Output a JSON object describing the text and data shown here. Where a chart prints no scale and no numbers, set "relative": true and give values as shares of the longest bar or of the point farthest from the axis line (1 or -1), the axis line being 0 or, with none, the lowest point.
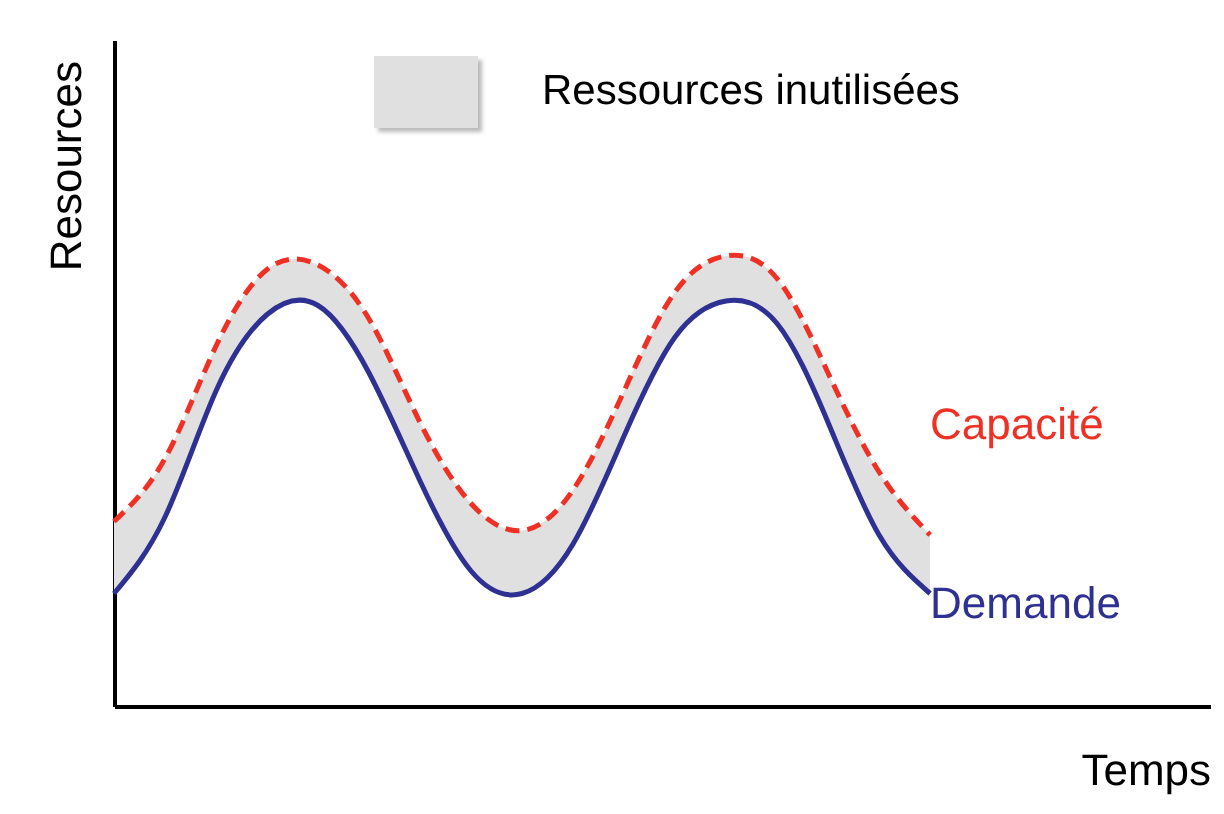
{
  "chart_data": {
    "type": "line",
    "relative": true,
    "xlabel": "Temps",
    "ylabel": "Resources",
    "categories": [
      null,
      null,
      null,
      null,
      null,
      null,
      null,
      null,
      null,
      null,
      null,
      null,
      null,
      null,
      null,
      null,
      null
    ],
    "annotations": [
      "Ressources inutilisées"
    ],
    "series": [
      {
        "name": "Capacité",
        "color": "#ee3124",
        "line_style": "dashed",
        "values": [
          0.41,
          0.55,
          0.8,
          0.97,
          0.98,
          0.86,
          0.63,
          0.45,
          0.39,
          0.48,
          0.7,
          0.92,
          1.0,
          0.95,
          0.74,
          0.52,
          0.38
        ],
        "lower": [
          0.25,
          0.42,
          0.7,
          0.87,
          0.89,
          0.74,
          0.5,
          0.3,
          0.25,
          0.36,
          0.6,
          0.82,
          0.9,
          0.85,
          0.63,
          0.38,
          0.25
        ],
        "upper": [
          0.41,
          0.55,
          0.8,
          0.97,
          0.98,
          0.86,
          0.63,
          0.45,
          0.39,
          0.48,
          0.7,
          0.92,
          1.0,
          0.95,
          0.74,
          0.52,
          0.38
        ]
      },
      {
        "name": "Demande",
        "color": "#2e3192",
        "line_style": "solid",
        "values": [
          0.25,
          0.42,
          0.7,
          0.87,
          0.89,
          0.74,
          0.5,
          0.3,
          0.25,
          0.36,
          0.6,
          0.82,
          0.9,
          0.85,
          0.63,
          0.38,
          0.25
        ]
      }
    ]
  }
}
